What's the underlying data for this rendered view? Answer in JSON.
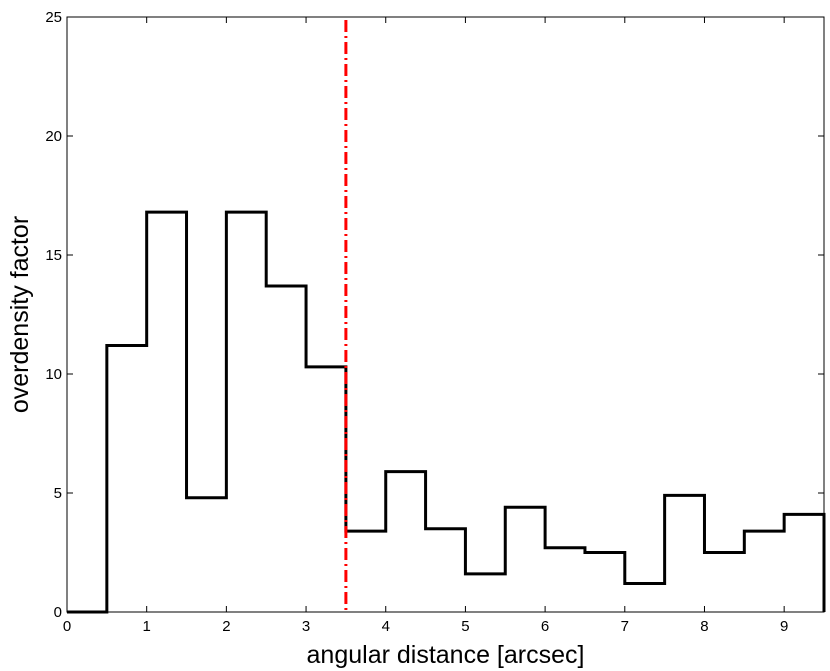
{
  "chart_data": {
    "type": "step",
    "title": "",
    "xlabel": "angular distance [arcsec]",
    "ylabel": "overdensity factor",
    "xlim": [
      0,
      9.5
    ],
    "ylim": [
      0,
      25
    ],
    "xticks": [
      0,
      1,
      2,
      3,
      4,
      5,
      6,
      7,
      8,
      9
    ],
    "yticks": [
      0,
      5,
      10,
      15,
      20,
      25
    ],
    "grid": false,
    "bins": {
      "edges": [
        0,
        0.5,
        1,
        1.5,
        2,
        2.5,
        3,
        3.5,
        4,
        4.5,
        5,
        5.5,
        6,
        6.5,
        7,
        7.5,
        8,
        8.5,
        9,
        9.5
      ],
      "values": [
        0,
        11.2,
        16.8,
        4.8,
        16.8,
        13.7,
        10.3,
        3.4,
        5.9,
        3.5,
        1.6,
        4.4,
        2.7,
        2.5,
        1.2,
        4.9,
        2.5,
        3.4,
        4.1
      ],
      "color": "#000000"
    },
    "reference_line": {
      "x": 3.5,
      "color": "#ff0000",
      "style": "dash-dot"
    }
  }
}
